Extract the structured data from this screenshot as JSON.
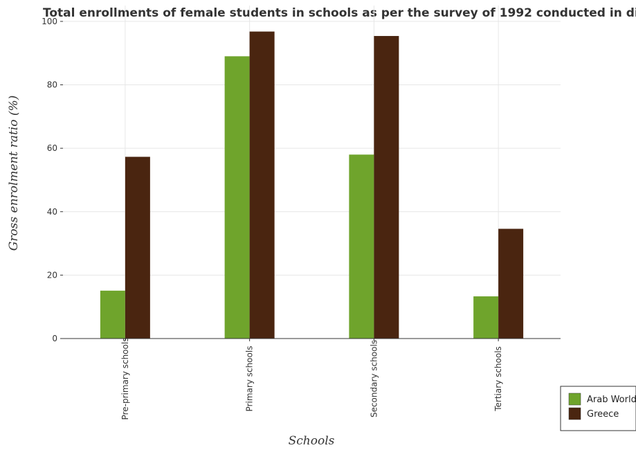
{
  "chart_data": {
    "type": "bar",
    "title": "Total enrollments of female students in schools as per the survey of 1992 conducted in different countries",
    "xlabel": "Schools",
    "ylabel": "Gross enrolment ratio (%)",
    "ylim": [
      0,
      105
    ],
    "yticks": [
      0,
      20,
      40,
      60,
      80,
      100
    ],
    "categories": [
      "Pre-primary schools",
      "Primary schools",
      "Secondary schools",
      "Tertiary schools"
    ],
    "series": [
      {
        "name": "Arab World",
        "color": "#6fa42c",
        "values": [
          15.1,
          89.0,
          58.0,
          13.3
        ]
      },
      {
        "name": "Greece",
        "color": "#4a2510",
        "values": [
          57.3,
          96.8,
          95.4,
          34.6
        ]
      }
    ],
    "grid": true,
    "legend_position": "bottom-right"
  }
}
